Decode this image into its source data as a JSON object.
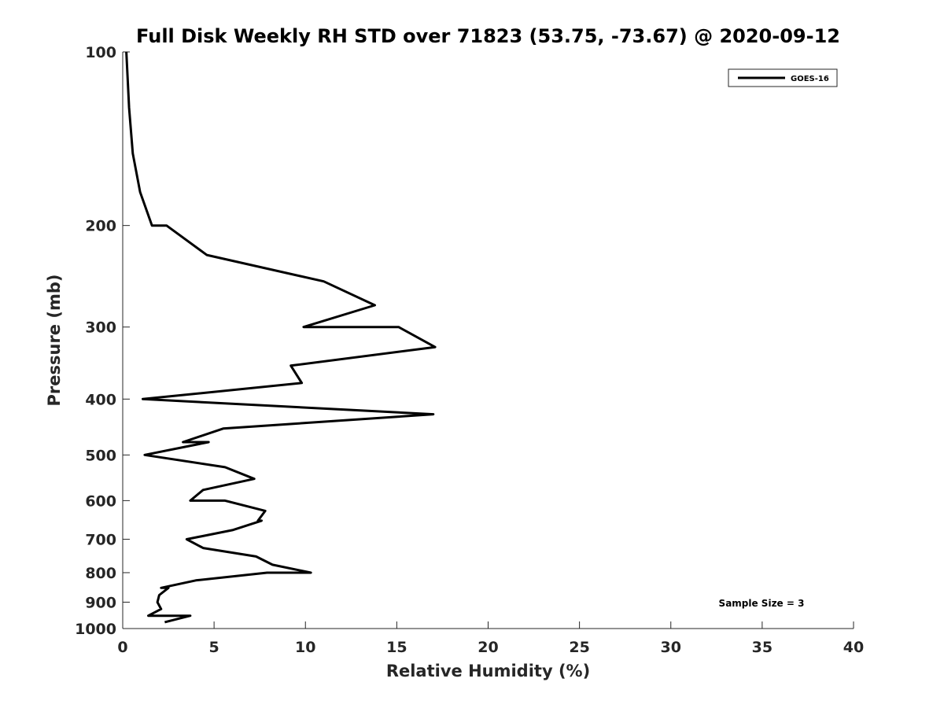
{
  "chart_data": {
    "type": "line",
    "title": "Full Disk Weekly RH STD over 71823 (53.75, -73.67) @ 2020-09-12",
    "xlabel": "Relative Humidity (%)",
    "ylabel": "Pressure (mb)",
    "xlim": [
      0,
      40
    ],
    "ylim": [
      100,
      1000
    ],
    "y_scale": "log",
    "y_reversed": true,
    "grid": false,
    "legend_position": "top-right",
    "x_ticks": [
      0,
      5,
      10,
      15,
      20,
      25,
      30,
      35,
      40
    ],
    "y_ticks": [
      100,
      200,
      300,
      400,
      500,
      600,
      700,
      800,
      900,
      1000
    ],
    "series": [
      {
        "name": "GOES-16",
        "color": "#000000",
        "points": [
          [
            0.2,
            100
          ],
          [
            0.35,
            125
          ],
          [
            0.55,
            150
          ],
          [
            0.95,
            175
          ],
          [
            1.6,
            200
          ],
          [
            2.4,
            200
          ],
          [
            4.6,
            225
          ],
          [
            11.0,
            250
          ],
          [
            13.8,
            275
          ],
          [
            9.9,
            300
          ],
          [
            15.1,
            300
          ],
          [
            17.1,
            325
          ],
          [
            9.2,
            350
          ],
          [
            9.8,
            375
          ],
          [
            1.1,
            400
          ],
          [
            17.0,
            425
          ],
          [
            5.5,
            450
          ],
          [
            3.3,
            475
          ],
          [
            4.7,
            475
          ],
          [
            1.2,
            500
          ],
          [
            5.6,
            525
          ],
          [
            7.2,
            550
          ],
          [
            4.4,
            575
          ],
          [
            3.7,
            600
          ],
          [
            5.6,
            600
          ],
          [
            7.8,
            625
          ],
          [
            7.4,
            650
          ],
          [
            7.6,
            650
          ],
          [
            6.0,
            675
          ],
          [
            3.5,
            700
          ],
          [
            4.4,
            725
          ],
          [
            7.3,
            750
          ],
          [
            8.2,
            775
          ],
          [
            10.3,
            800
          ],
          [
            7.9,
            800
          ],
          [
            4.0,
            825
          ],
          [
            2.1,
            850
          ],
          [
            2.5,
            850
          ],
          [
            2.0,
            875
          ],
          [
            1.9,
            900
          ],
          [
            2.1,
            925
          ],
          [
            1.4,
            950
          ],
          [
            3.7,
            950
          ],
          [
            2.3,
            975
          ]
        ]
      }
    ],
    "annotations": [
      "Sample Size = 3"
    ]
  }
}
